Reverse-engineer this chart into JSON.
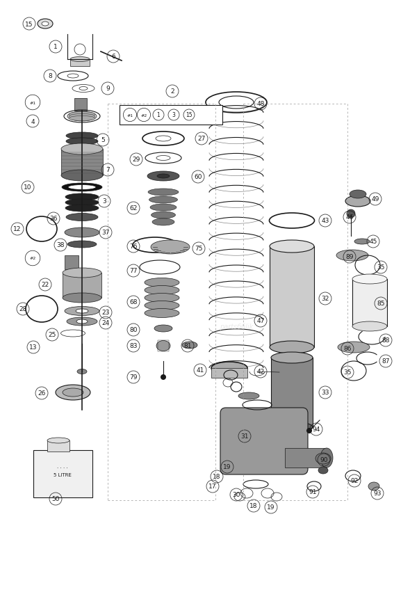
{
  "background_color": "#ffffff",
  "line_color": "#1a1a1a",
  "fig_w": 5.9,
  "fig_h": 8.62,
  "dpi": 100
}
